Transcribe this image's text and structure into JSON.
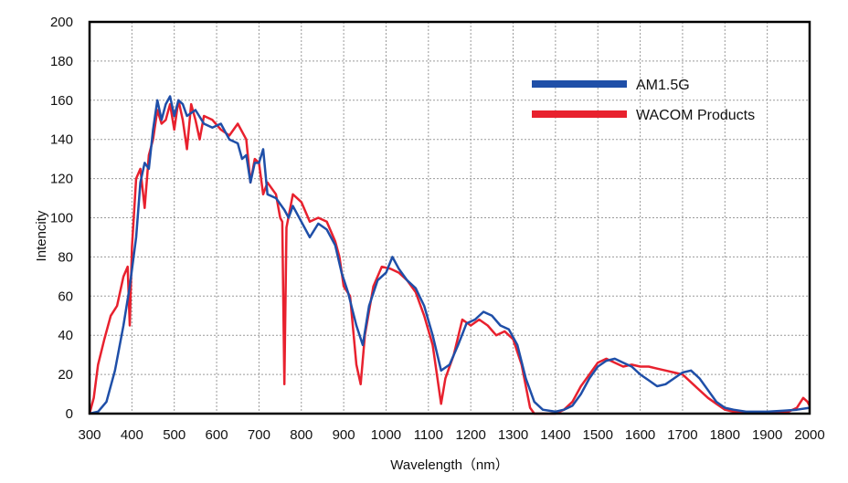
{
  "chart_data": {
    "type": "line",
    "title": "",
    "xlabel": "Wavelength（nm）",
    "ylabel": "Intencity",
    "xlim": [
      300,
      2000
    ],
    "ylim": [
      0,
      200
    ],
    "x_ticks": [
      300,
      400,
      500,
      600,
      700,
      800,
      900,
      1000,
      1100,
      1200,
      1300,
      1400,
      1500,
      1600,
      1700,
      1800,
      1900,
      2000
    ],
    "y_ticks": [
      0,
      20,
      40,
      60,
      80,
      100,
      120,
      140,
      160,
      180,
      200
    ],
    "grid": true,
    "legend_position": "top-right",
    "series": [
      {
        "name": "AM1.5G",
        "color": "#1f4fa8",
        "points": [
          [
            300,
            0
          ],
          [
            320,
            1
          ],
          [
            340,
            6
          ],
          [
            360,
            22
          ],
          [
            380,
            45
          ],
          [
            395,
            65
          ],
          [
            410,
            90
          ],
          [
            420,
            118
          ],
          [
            430,
            128
          ],
          [
            440,
            125
          ],
          [
            450,
            145
          ],
          [
            460,
            160
          ],
          [
            470,
            150
          ],
          [
            480,
            158
          ],
          [
            490,
            162
          ],
          [
            500,
            152
          ],
          [
            510,
            160
          ],
          [
            520,
            158
          ],
          [
            530,
            152
          ],
          [
            550,
            155
          ],
          [
            570,
            148
          ],
          [
            590,
            146
          ],
          [
            610,
            148
          ],
          [
            630,
            140
          ],
          [
            650,
            138
          ],
          [
            660,
            130
          ],
          [
            670,
            132
          ],
          [
            680,
            118
          ],
          [
            690,
            128
          ],
          [
            700,
            128
          ],
          [
            710,
            135
          ],
          [
            720,
            112
          ],
          [
            740,
            110
          ],
          [
            760,
            104
          ],
          [
            770,
            100
          ],
          [
            780,
            106
          ],
          [
            800,
            98
          ],
          [
            820,
            90
          ],
          [
            840,
            97
          ],
          [
            860,
            94
          ],
          [
            880,
            86
          ],
          [
            895,
            72
          ],
          [
            910,
            62
          ],
          [
            930,
            45
          ],
          [
            945,
            35
          ],
          [
            960,
            55
          ],
          [
            980,
            68
          ],
          [
            1000,
            72
          ],
          [
            1015,
            80
          ],
          [
            1030,
            74
          ],
          [
            1050,
            68
          ],
          [
            1070,
            64
          ],
          [
            1090,
            55
          ],
          [
            1110,
            40
          ],
          [
            1130,
            22
          ],
          [
            1150,
            25
          ],
          [
            1170,
            35
          ],
          [
            1190,
            46
          ],
          [
            1210,
            48
          ],
          [
            1230,
            52
          ],
          [
            1250,
            50
          ],
          [
            1270,
            45
          ],
          [
            1290,
            43
          ],
          [
            1310,
            35
          ],
          [
            1330,
            18
          ],
          [
            1350,
            6
          ],
          [
            1370,
            2
          ],
          [
            1400,
            1
          ],
          [
            1420,
            2
          ],
          [
            1440,
            4
          ],
          [
            1460,
            10
          ],
          [
            1480,
            18
          ],
          [
            1500,
            24
          ],
          [
            1520,
            27
          ],
          [
            1540,
            28
          ],
          [
            1560,
            26
          ],
          [
            1580,
            24
          ],
          [
            1600,
            20
          ],
          [
            1620,
            17
          ],
          [
            1640,
            14
          ],
          [
            1660,
            15
          ],
          [
            1680,
            18
          ],
          [
            1700,
            21
          ],
          [
            1720,
            22
          ],
          [
            1740,
            18
          ],
          [
            1760,
            12
          ],
          [
            1780,
            6
          ],
          [
            1800,
            3
          ],
          [
            1820,
            2
          ],
          [
            1850,
            1
          ],
          [
            1880,
            1
          ],
          [
            1900,
            1
          ],
          [
            1940,
            1.5
          ],
          [
            1970,
            2
          ],
          [
            2000,
            3
          ]
        ]
      },
      {
        "name": "WACOM Products",
        "color": "#e8212e",
        "points": [
          [
            300,
            0
          ],
          [
            310,
            8
          ],
          [
            320,
            25
          ],
          [
            335,
            38
          ],
          [
            350,
            50
          ],
          [
            365,
            55
          ],
          [
            380,
            70
          ],
          [
            390,
            75
          ],
          [
            395,
            45
          ],
          [
            400,
            85
          ],
          [
            410,
            120
          ],
          [
            420,
            125
          ],
          [
            430,
            105
          ],
          [
            440,
            132
          ],
          [
            450,
            140
          ],
          [
            460,
            155
          ],
          [
            470,
            148
          ],
          [
            480,
            150
          ],
          [
            490,
            158
          ],
          [
            500,
            145
          ],
          [
            510,
            160
          ],
          [
            520,
            150
          ],
          [
            530,
            135
          ],
          [
            540,
            158
          ],
          [
            550,
            150
          ],
          [
            560,
            140
          ],
          [
            570,
            152
          ],
          [
            590,
            150
          ],
          [
            610,
            145
          ],
          [
            630,
            142
          ],
          [
            650,
            148
          ],
          [
            670,
            140
          ],
          [
            680,
            118
          ],
          [
            690,
            130
          ],
          [
            700,
            128
          ],
          [
            710,
            112
          ],
          [
            720,
            118
          ],
          [
            740,
            112
          ],
          [
            750,
            100
          ],
          [
            755,
            98
          ],
          [
            760,
            15
          ],
          [
            765,
            95
          ],
          [
            780,
            112
          ],
          [
            800,
            108
          ],
          [
            820,
            98
          ],
          [
            840,
            100
          ],
          [
            860,
            98
          ],
          [
            880,
            88
          ],
          [
            890,
            80
          ],
          [
            900,
            65
          ],
          [
            915,
            60
          ],
          [
            930,
            25
          ],
          [
            940,
            15
          ],
          [
            950,
            40
          ],
          [
            970,
            65
          ],
          [
            990,
            75
          ],
          [
            1010,
            74
          ],
          [
            1030,
            72
          ],
          [
            1050,
            68
          ],
          [
            1070,
            62
          ],
          [
            1090,
            50
          ],
          [
            1110,
            35
          ],
          [
            1120,
            20
          ],
          [
            1130,
            5
          ],
          [
            1140,
            18
          ],
          [
            1160,
            30
          ],
          [
            1180,
            48
          ],
          [
            1200,
            45
          ],
          [
            1220,
            48
          ],
          [
            1240,
            45
          ],
          [
            1260,
            40
          ],
          [
            1280,
            42
          ],
          [
            1300,
            38
          ],
          [
            1320,
            25
          ],
          [
            1340,
            3
          ],
          [
            1350,
            0
          ],
          [
            1400,
            0
          ],
          [
            1420,
            2
          ],
          [
            1440,
            6
          ],
          [
            1460,
            14
          ],
          [
            1480,
            20
          ],
          [
            1500,
            26
          ],
          [
            1520,
            28
          ],
          [
            1540,
            26
          ],
          [
            1560,
            24
          ],
          [
            1580,
            25
          ],
          [
            1600,
            24
          ],
          [
            1620,
            24
          ],
          [
            1640,
            23
          ],
          [
            1660,
            22
          ],
          [
            1680,
            21
          ],
          [
            1700,
            20
          ],
          [
            1720,
            16
          ],
          [
            1740,
            12
          ],
          [
            1760,
            8
          ],
          [
            1780,
            5
          ],
          [
            1800,
            2
          ],
          [
            1820,
            1
          ],
          [
            1850,
            0.5
          ],
          [
            1900,
            0.5
          ],
          [
            1950,
            1
          ],
          [
            1970,
            3
          ],
          [
            1985,
            8
          ],
          [
            1995,
            6
          ],
          [
            2000,
            4
          ]
        ]
      }
    ]
  }
}
